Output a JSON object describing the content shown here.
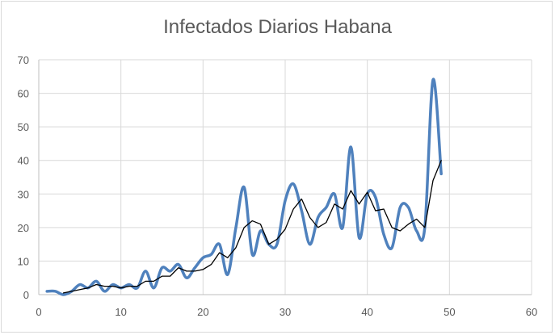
{
  "chart_data": {
    "type": "line",
    "title": "Infectados Diarios Habana",
    "xlabel": "",
    "ylabel": "",
    "xlim": [
      0,
      60
    ],
    "ylim": [
      0,
      70
    ],
    "x_ticks": [
      0,
      10,
      20,
      30,
      40,
      50,
      60
    ],
    "y_ticks": [
      0,
      10,
      20,
      30,
      40,
      50,
      60,
      70
    ],
    "grid": true,
    "legend": "none",
    "series": [
      {
        "style": "smooth",
        "color": "#4f81bd",
        "x": [
          1,
          2,
          3,
          4,
          5,
          6,
          7,
          8,
          9,
          10,
          11,
          12,
          13,
          14,
          15,
          16,
          17,
          18,
          19,
          20,
          21,
          22,
          23,
          24,
          25,
          26,
          27,
          28,
          29,
          30,
          31,
          32,
          33,
          34,
          35,
          36,
          37,
          38,
          39,
          40,
          41,
          42,
          43,
          44,
          45,
          46,
          47,
          48,
          49
        ],
        "values": [
          1,
          1,
          0,
          1,
          3,
          2,
          4,
          1,
          3,
          2,
          3,
          2,
          7,
          2,
          8,
          7,
          9,
          5,
          8,
          11,
          12,
          15,
          6,
          20,
          32,
          12,
          19,
          15,
          15,
          28,
          33,
          25,
          15,
          23,
          26,
          30,
          20,
          44,
          17,
          30,
          29,
          18,
          14,
          26,
          26,
          19,
          20,
          64,
          36
        ]
      },
      {
        "style": "straight",
        "color": "#000000",
        "x": [
          3,
          4,
          5,
          6,
          7,
          8,
          9,
          10,
          11,
          12,
          13,
          14,
          15,
          16,
          17,
          18,
          19,
          20,
          21,
          22,
          23,
          24,
          25,
          26,
          27,
          28,
          29,
          30,
          31,
          32,
          33,
          34,
          35,
          36,
          37,
          38,
          39,
          40,
          41,
          42,
          43,
          44,
          45,
          46,
          47,
          48,
          49
        ],
        "values": [
          0.5,
          1,
          1.5,
          2,
          3,
          2.5,
          2.5,
          2,
          2.5,
          2.5,
          4,
          4,
          5.5,
          5.5,
          8,
          7,
          7,
          7.5,
          9,
          12.5,
          11,
          14,
          20,
          22,
          21,
          15,
          16.5,
          19.5,
          25.5,
          28.5,
          23,
          20,
          21.5,
          27,
          25.5,
          31,
          27,
          30.5,
          25,
          25.5,
          20,
          19,
          21,
          22.5,
          20,
          34,
          40
        ]
      }
    ]
  }
}
